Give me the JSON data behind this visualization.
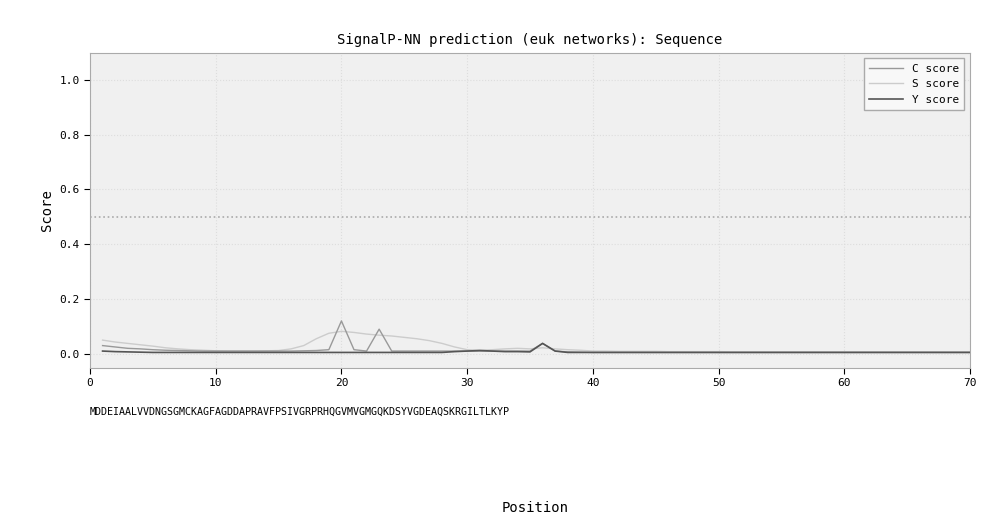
{
  "title": "SignalP-NN prediction (euk networks): Sequence",
  "xlabel": "Position",
  "ylabel": "Score",
  "xlim": [
    0,
    70
  ],
  "ylim": [
    -0.05,
    1.1
  ],
  "yticks": [
    0.0,
    0.2,
    0.4,
    0.6,
    0.8,
    1.0
  ],
  "xticks": [
    0,
    10,
    20,
    30,
    40,
    50,
    60,
    70
  ],
  "threshold": 0.5,
  "sequence": "MDDEIAALVVDNGSGMCKAGFAGDDAPRAVFPSIVGRPRHQGVMVGMGQKDSYVGDEAQSKRGILTLKYP",
  "legend_labels": [
    "C score",
    "S score",
    "Y score"
  ],
  "c_color": "#999999",
  "s_color": "#cccccc",
  "y_color": "#555555",
  "background_color": "#f5f5f5",
  "plot_bg_color": "#f0f0f0",
  "grid_color": "#dddddd",
  "threshold_color": "#aaaaaa",
  "c_score": [
    0.03,
    0.025,
    0.02,
    0.018,
    0.015,
    0.013,
    0.012,
    0.011,
    0.01,
    0.01,
    0.01,
    0.01,
    0.01,
    0.01,
    0.01,
    0.01,
    0.011,
    0.012,
    0.015,
    0.12,
    0.015,
    0.01,
    0.09,
    0.01,
    0.01,
    0.01,
    0.01,
    0.01,
    0.01,
    0.01,
    0.01,
    0.01,
    0.01,
    0.01,
    0.01,
    0.038,
    0.01,
    0.007,
    0.006,
    0.005,
    0.005,
    0.005,
    0.005,
    0.005,
    0.005,
    0.005,
    0.005,
    0.005,
    0.005,
    0.005,
    0.005,
    0.005,
    0.005,
    0.005,
    0.005,
    0.005,
    0.005,
    0.005,
    0.005,
    0.005,
    0.005,
    0.005,
    0.005,
    0.005,
    0.005,
    0.005,
    0.005,
    0.005,
    0.005,
    0.005
  ],
  "s_score": [
    0.05,
    0.043,
    0.038,
    0.033,
    0.028,
    0.022,
    0.018,
    0.015,
    0.013,
    0.011,
    0.01,
    0.01,
    0.01,
    0.011,
    0.012,
    0.018,
    0.03,
    0.055,
    0.075,
    0.082,
    0.078,
    0.072,
    0.068,
    0.065,
    0.06,
    0.055,
    0.048,
    0.038,
    0.025,
    0.015,
    0.013,
    0.015,
    0.018,
    0.02,
    0.018,
    0.022,
    0.018,
    0.015,
    0.013,
    0.01,
    0.01,
    0.009,
    0.009,
    0.009,
    0.009,
    0.008,
    0.008,
    0.008,
    0.008,
    0.008,
    0.007,
    0.007,
    0.007,
    0.007,
    0.007,
    0.007,
    0.007,
    0.007,
    0.007,
    0.007,
    0.007,
    0.007,
    0.007,
    0.007,
    0.007,
    0.007,
    0.007,
    0.007,
    0.007,
    0.007
  ],
  "y_score": [
    0.01,
    0.008,
    0.007,
    0.006,
    0.005,
    0.005,
    0.005,
    0.005,
    0.005,
    0.005,
    0.005,
    0.005,
    0.005,
    0.005,
    0.005,
    0.005,
    0.005,
    0.005,
    0.005,
    0.005,
    0.005,
    0.005,
    0.005,
    0.005,
    0.005,
    0.005,
    0.005,
    0.005,
    0.008,
    0.01,
    0.012,
    0.01,
    0.008,
    0.008,
    0.007,
    0.038,
    0.01,
    0.005,
    0.005,
    0.005,
    0.005,
    0.005,
    0.005,
    0.005,
    0.005,
    0.005,
    0.005,
    0.005,
    0.005,
    0.005,
    0.005,
    0.005,
    0.005,
    0.005,
    0.005,
    0.005,
    0.005,
    0.005,
    0.005,
    0.005,
    0.005,
    0.005,
    0.005,
    0.005,
    0.005,
    0.005,
    0.005,
    0.005,
    0.005,
    0.005
  ]
}
